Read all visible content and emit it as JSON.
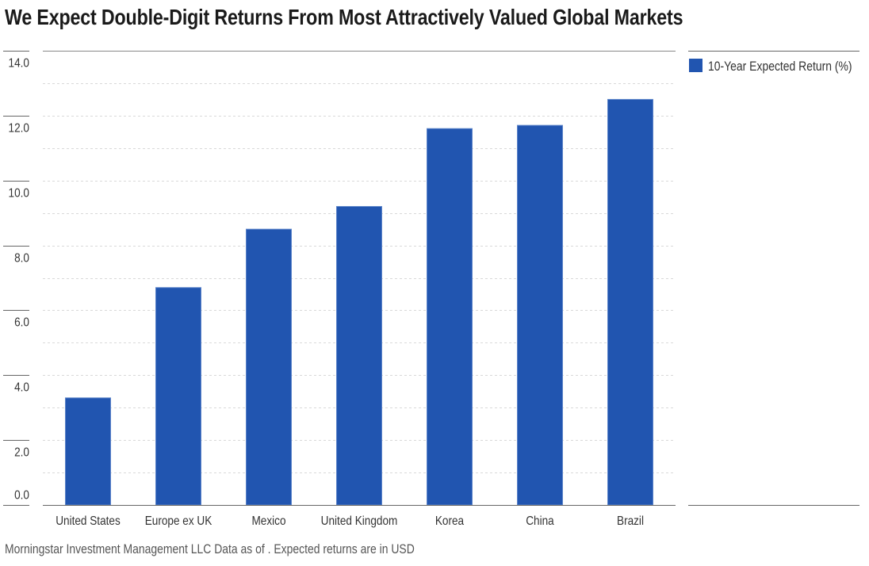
{
  "chart_data": {
    "type": "bar",
    "title": "We Expect Double-Digit Returns From Most Attractively Valued Global Markets",
    "xlabel": "",
    "ylabel": "",
    "categories": [
      "United States",
      "Europe ex UK",
      "Mexico",
      "United Kingdom",
      "Korea",
      "China",
      "Brazil"
    ],
    "series": [
      {
        "name": "10-Year Expected Return (%)",
        "color": "#2155B0",
        "values": [
          3.3,
          6.7,
          8.5,
          9.2,
          11.6,
          11.7,
          12.5
        ]
      }
    ],
    "ylim": [
      0,
      14
    ],
    "yticks": [
      0,
      2,
      4,
      6,
      8,
      10,
      12,
      14
    ],
    "ytick_labels": [
      "0.0",
      "2.0",
      "4.0",
      "6.0",
      "8.0",
      "10.0",
      "12.0",
      "14.0"
    ],
    "minor_grid_step": 1,
    "grid": true,
    "legend_position": "right",
    "footer": "Morningstar Investment Management LLC Data as of . Expected returns are in USD"
  },
  "legend": {
    "label": "10-Year Expected Return (%)"
  },
  "colors": {
    "bar": "#2155B0",
    "axis": "#666666",
    "grid": "#d9d9d9"
  }
}
